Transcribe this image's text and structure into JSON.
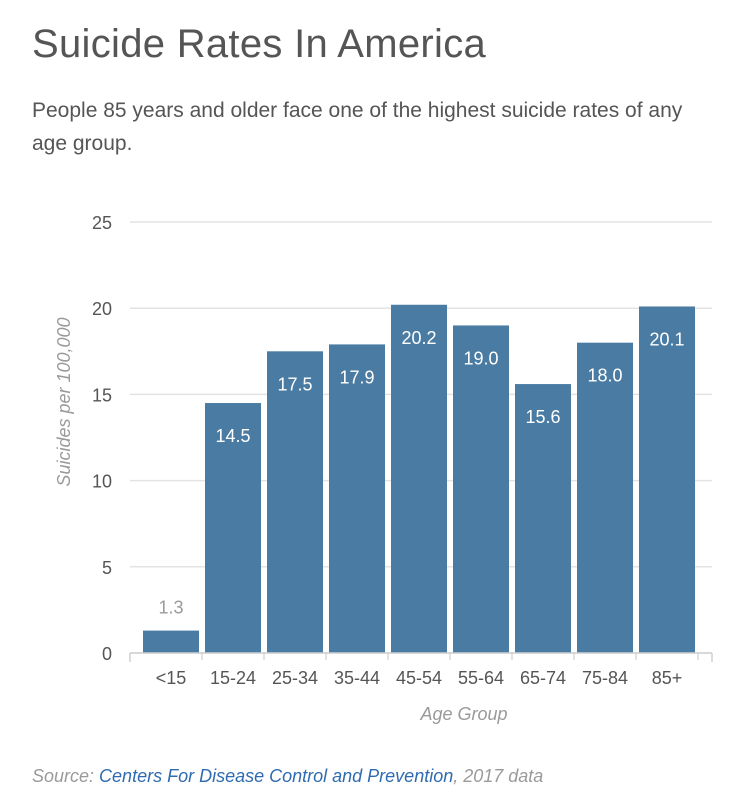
{
  "header": {
    "title": "Suicide Rates In America",
    "subtitle": "People 85 years and older face one of the highest suicide rates of any age group."
  },
  "colors": {
    "bar": "#4a7ca3",
    "grid": "#e3e3e3",
    "axis_text": "#555555",
    "axis_title": "#9a9a9a",
    "label_inside": "#ffffff",
    "label_outside": "#9a9a9a",
    "link": "#2f6bb0"
  },
  "chart_data": {
    "type": "bar",
    "title": "Suicide Rates In America",
    "xlabel": "Age Group",
    "ylabel": "Suicides per 100,000",
    "ylim": [
      0,
      25
    ],
    "yticks": [
      0,
      5,
      10,
      15,
      20,
      25
    ],
    "categories": [
      "<15",
      "15-24",
      "25-34",
      "35-44",
      "45-54",
      "55-64",
      "65-74",
      "75-84",
      "85+"
    ],
    "values": [
      1.3,
      14.5,
      17.5,
      17.9,
      20.2,
      19.0,
      15.6,
      18.0,
      20.1
    ],
    "value_labels": [
      "1.3",
      "14.5",
      "17.5",
      "17.9",
      "20.2",
      "19.0",
      "15.6",
      "18.0",
      "20.1"
    ],
    "grid": true
  },
  "footer": {
    "source_prefix": "Source: ",
    "source_link": "Centers For Disease Control and Prevention",
    "source_suffix": ", 2017 data"
  }
}
